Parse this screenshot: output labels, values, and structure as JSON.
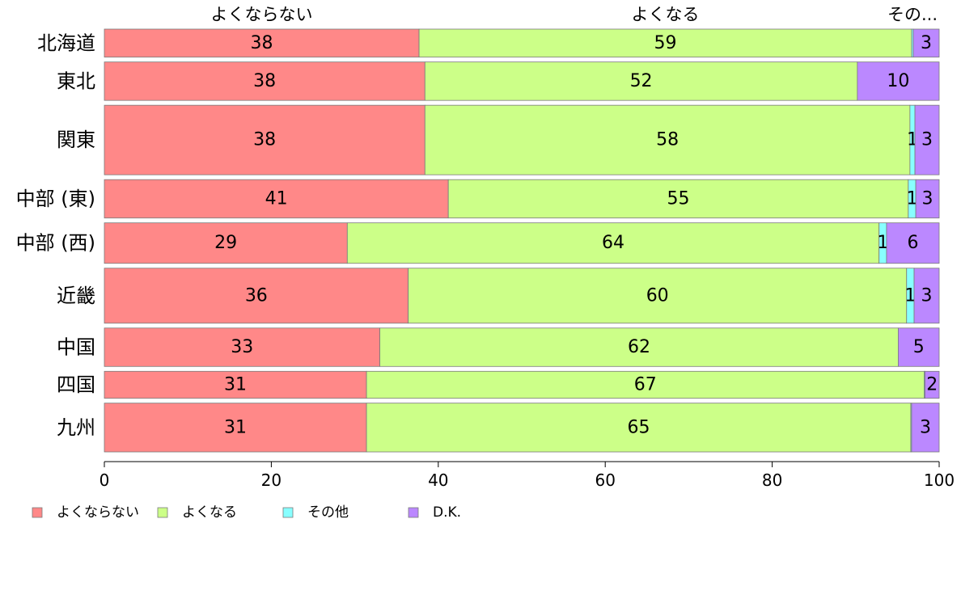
{
  "chart_data": {
    "type": "bar",
    "orientation": "horizontal",
    "stacked": true,
    "categories": [
      "北海道",
      "東北",
      "関東",
      "中部 (東)",
      "中部 (西)",
      "近畿",
      "中国",
      "四国",
      "九州"
    ],
    "row_weights": [
      1.35,
      1.85,
      3.35,
      1.85,
      1.95,
      2.65,
      1.85,
      1.3,
      2.35
    ],
    "series": [
      {
        "name": "よくならない",
        "color": "#ff8888",
        "values": [
          37.7,
          38.4,
          38.4,
          41.2,
          29.1,
          36.4,
          33.0,
          31.4,
          31.4
        ],
        "labels": [
          "38",
          "38",
          "38",
          "41",
          "29",
          "36",
          "33",
          "31",
          "31"
        ]
      },
      {
        "name": "よくなる",
        "color": "#ccff88",
        "values": [
          59.0,
          51.8,
          58.1,
          55.1,
          63.7,
          59.7,
          62.1,
          66.8,
          65.2
        ],
        "labels": [
          "59",
          "52",
          "58",
          "55",
          "64",
          "60",
          "62",
          "67",
          "65"
        ]
      },
      {
        "name": "その他",
        "color": "#88ffff",
        "values": [
          0.2,
          0.0,
          0.6,
          0.9,
          0.9,
          0.9,
          0.0,
          0.1,
          0.1
        ],
        "labels": [
          "",
          "",
          "1",
          "1",
          "1",
          "1",
          "",
          "",
          ""
        ]
      },
      {
        "name": "D.K.",
        "color": "#bb88ff",
        "values": [
          3.1,
          9.8,
          2.9,
          2.8,
          6.3,
          3.0,
          4.9,
          1.7,
          3.3
        ],
        "labels": [
          "3",
          "10",
          "3",
          "3",
          "6",
          "3",
          "5",
          "2",
          "3"
        ]
      }
    ],
    "column_headers": [
      "よくならない",
      "よくなる",
      "その..."
    ],
    "xlim": [
      0,
      100
    ],
    "x_ticks": [
      "0",
      "20",
      "40",
      "60",
      "80",
      "100"
    ],
    "xlabel": "",
    "ylabel": "",
    "grid": false,
    "legend_position": "bottom-left"
  }
}
